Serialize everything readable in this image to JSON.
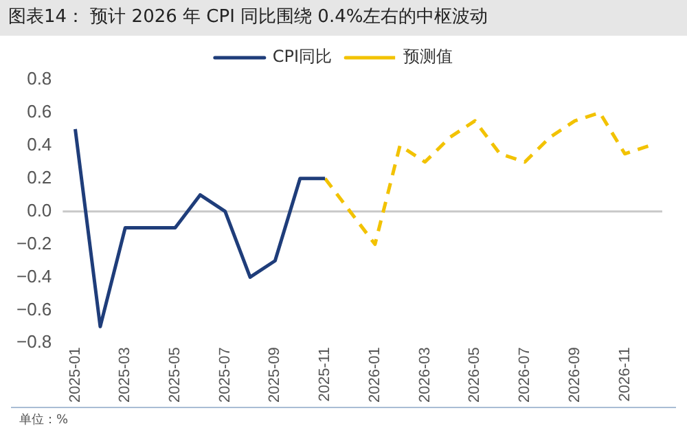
{
  "chart_data": {
    "type": "line",
    "title": "图表14：  预计 2026 年 CPI 同比围绕 0.4%左右的中枢波动",
    "categories": [
      "2025-01",
      null,
      "2025-03",
      null,
      "2025-05",
      null,
      "2025-07",
      null,
      "2025-09",
      null,
      "2025-11",
      null,
      "2026-01",
      null,
      "2026-03",
      null,
      "2026-05",
      null,
      "2026-07",
      null,
      "2026-09",
      null,
      "2026-11",
      null
    ],
    "series": [
      {
        "name": "CPI同比",
        "color": "#1f3d7a",
        "line_style": "solid",
        "values": [
          0.5,
          -0.7,
          -0.1,
          -0.1,
          -0.1,
          0.1,
          0.0,
          -0.4,
          -0.3,
          0.2,
          0.2,
          null,
          null,
          null,
          null,
          null,
          null,
          null,
          null,
          null,
          null,
          null,
          null,
          null
        ]
      },
      {
        "name": "预测值",
        "color": "#f2c200",
        "line_style": "dashed",
        "values": [
          null,
          null,
          null,
          null,
          null,
          null,
          null,
          null,
          null,
          null,
          0.2,
          0.0,
          -0.2,
          0.4,
          0.3,
          0.45,
          0.55,
          0.35,
          0.3,
          0.45,
          0.55,
          0.6,
          0.35,
          0.4
        ]
      }
    ],
    "ylim": [
      -0.8,
      0.8
    ],
    "yticks": [
      -0.8,
      -0.6,
      -0.4,
      -0.2,
      {
        "value": 0,
        "label": "0.0"
      },
      0.2,
      0.4,
      0.6,
      0.8
    ],
    "ref_lines": [
      {
        "axis": "y",
        "value": 0,
        "color": "#c8c8c8"
      }
    ],
    "grid": false,
    "legend": "top",
    "marker": "none",
    "annotations": [
      "单位：%"
    ]
  }
}
